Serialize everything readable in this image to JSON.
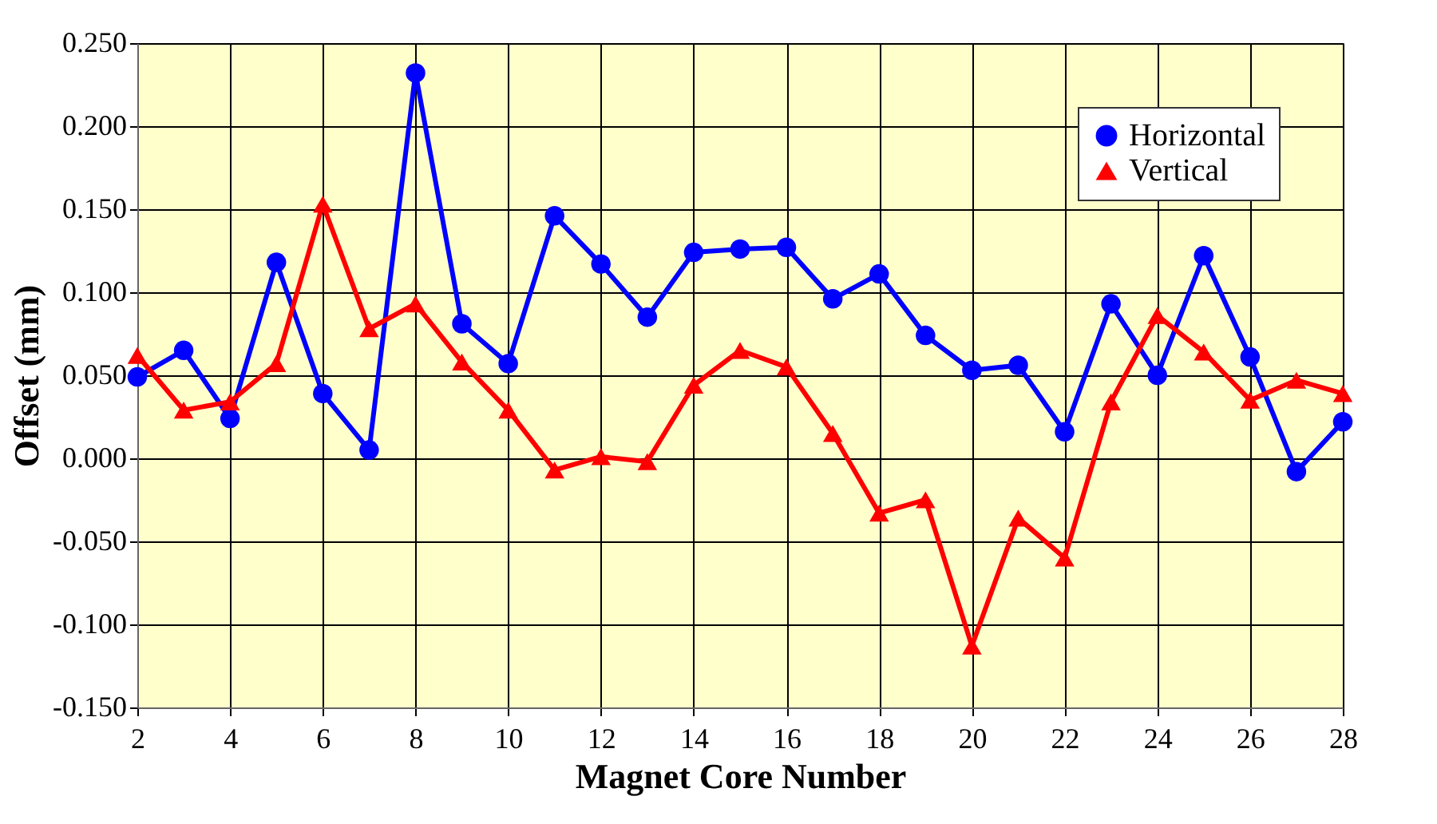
{
  "chart_data": {
    "type": "line",
    "xlabel": "Magnet Core Number",
    "ylabel": "Offset (mm)",
    "x": [
      2,
      3,
      4,
      5,
      6,
      7,
      8,
      9,
      10,
      11,
      12,
      13,
      14,
      15,
      16,
      17,
      18,
      19,
      20,
      21,
      22,
      23,
      24,
      25,
      26,
      27,
      28
    ],
    "series": [
      {
        "name": "Horizontal",
        "color": "#0000ff",
        "marker": "circle",
        "values": [
          0.049,
          0.065,
          0.024,
          0.118,
          0.039,
          0.005,
          0.232,
          0.081,
          0.057,
          0.146,
          0.117,
          0.085,
          0.124,
          0.126,
          0.127,
          0.096,
          0.111,
          0.074,
          0.053,
          0.056,
          0.016,
          0.093,
          0.05,
          0.122,
          0.061,
          -0.008,
          0.022
        ]
      },
      {
        "name": "Vertical",
        "color": "#ff0000",
        "marker": "triangle",
        "values": [
          0.062,
          0.029,
          0.034,
          0.057,
          0.153,
          0.078,
          0.093,
          0.058,
          0.029,
          -0.007,
          0.001,
          -0.002,
          0.044,
          0.065,
          0.055,
          0.015,
          -0.033,
          -0.025,
          -0.113,
          -0.036,
          -0.06,
          0.034,
          0.086,
          0.064,
          0.035,
          0.047,
          0.039
        ]
      }
    ],
    "xlim": [
      2,
      28
    ],
    "xticks": [
      2,
      4,
      6,
      8,
      10,
      12,
      14,
      16,
      18,
      20,
      22,
      24,
      26,
      28
    ],
    "ylim": [
      -0.15,
      0.25
    ],
    "yticks": [
      {
        "value": -0.15,
        "label": "-0.150"
      },
      {
        "value": -0.1,
        "label": "-0.100"
      },
      {
        "value": -0.05,
        "label": "-0.050"
      },
      {
        "value": 0,
        "label": "0.000"
      },
      {
        "value": 0.05,
        "label": "0.050"
      },
      {
        "value": 0.1,
        "label": "0.100"
      },
      {
        "value": 0.15,
        "label": "0.150"
      },
      {
        "value": 0.2,
        "label": "0.200"
      },
      {
        "value": 0.25,
        "label": "0.250"
      }
    ],
    "grid": true,
    "legend": "top right",
    "line_style": "solid"
  }
}
